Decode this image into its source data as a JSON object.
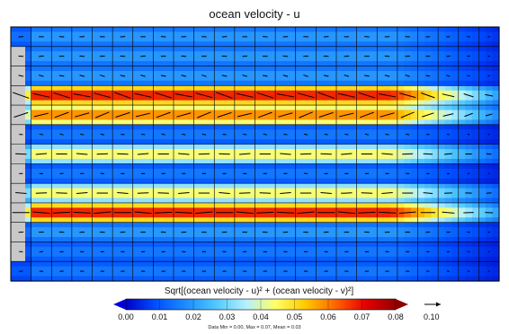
{
  "chart_data": {
    "type": "heatmap",
    "title": "ocean velocity - u",
    "colorbar": {
      "title": "Sqrt[(ocean velocity - u)² + (ocean velocity - v)²]",
      "range": [
        0.0,
        0.08
      ],
      "ticks": [
        "0.00",
        "0.01",
        "0.02",
        "0.03",
        "0.04",
        "0.05",
        "0.06",
        "0.07",
        "0.08"
      ],
      "colors": [
        "#0000c8",
        "#0050ff",
        "#1e8cff",
        "#50c8ff",
        "#b4f0ff",
        "#ffff64",
        "#ffc800",
        "#ff6400",
        "#e60000",
        "#960000"
      ]
    },
    "vector_reference": {
      "value": 0.1,
      "label": "0.10"
    },
    "stats": "Data Min = 0.00, Max = 0.07, Mean = 0.03",
    "grid": {
      "columns": 24,
      "rows": 13
    },
    "row_speed_max": [
      0.02,
      0.02,
      0.02,
      0.07,
      0.06,
      0.015,
      0.045,
      0.015,
      0.045,
      0.07,
      0.02,
      0.015,
      0.015
    ],
    "row_vector_angle_deg": [
      0,
      0,
      14,
      15,
      -18,
      8,
      0,
      0,
      0,
      0,
      0,
      0,
      0
    ],
    "land_rows": [
      1,
      2,
      3,
      4,
      5,
      6,
      7,
      8,
      9,
      10,
      11
    ],
    "colors": {
      "land": "#c8c8c8",
      "grid": "#000000",
      "arrow": "#000000"
    }
  }
}
